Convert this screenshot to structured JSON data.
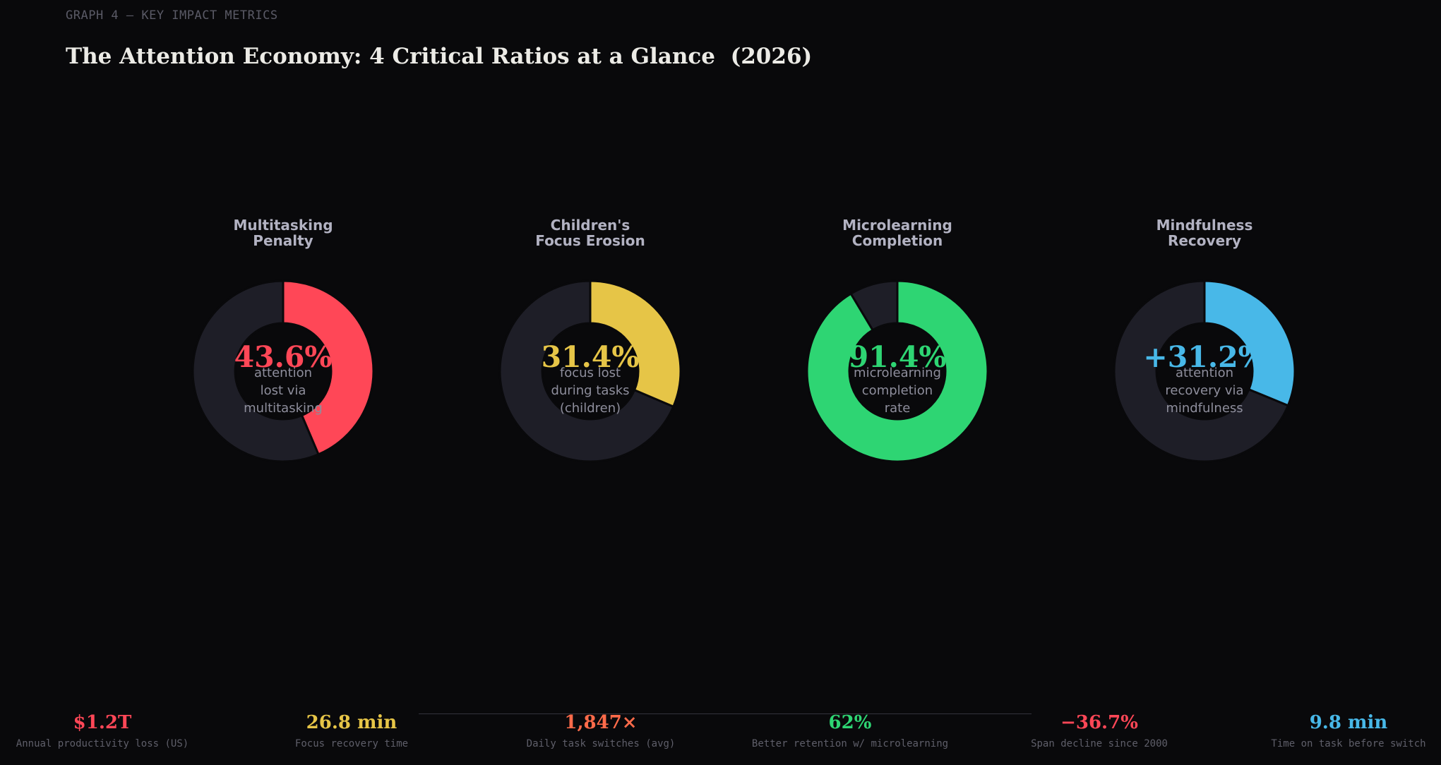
{
  "header": {
    "eyebrow": "GRAPH 4 — KEY IMPACT METRICS",
    "title": "The Attention Economy: 4 Critical Ratios at a Glance  (2026)"
  },
  "chart_data": {
    "type": "pie",
    "track_color": "#1e1e27",
    "donuts": [
      {
        "title_lines": [
          "Multitasking",
          "Penalty"
        ],
        "value": 43.6,
        "display": "43.6%",
        "label_lines": [
          "attention",
          "lost via",
          "multitasking"
        ],
        "color": "#ff4757"
      },
      {
        "title_lines": [
          "Children's",
          "Focus Erosion"
        ],
        "value": 31.4,
        "display": "31.4%",
        "label_lines": [
          "focus lost",
          "during tasks",
          "(children)"
        ],
        "color": "#e6c547"
      },
      {
        "title_lines": [
          "Microlearning",
          "Completion"
        ],
        "value": 91.4,
        "display": "91.4%",
        "label_lines": [
          "microlearning",
          "completion",
          "rate"
        ],
        "color": "#2ed573"
      },
      {
        "title_lines": [
          "Mindfulness",
          "Recovery"
        ],
        "value": 31.2,
        "display": "+31.2%",
        "label_lines": [
          "attention",
          "recovery via",
          "mindfulness"
        ],
        "color": "#48b8e8"
      }
    ]
  },
  "stats": [
    {
      "value": "$1.2T",
      "label": "Annual productivity loss (US)",
      "color": "#ff4757"
    },
    {
      "value": "26.8 min",
      "label": "Focus recovery time",
      "color": "#e6c547"
    },
    {
      "value": "1,847×",
      "label": "Daily task switches (avg)",
      "color": "#ff6b4a"
    },
    {
      "value": "62%",
      "label": "Better retention w/ microlearning",
      "color": "#2ed573"
    },
    {
      "value": "−36.7%",
      "label": "Span decline since 2000",
      "color": "#ff4757"
    },
    {
      "value": "9.8 min",
      "label": "Time on task before switch",
      "color": "#48b8e8"
    }
  ]
}
